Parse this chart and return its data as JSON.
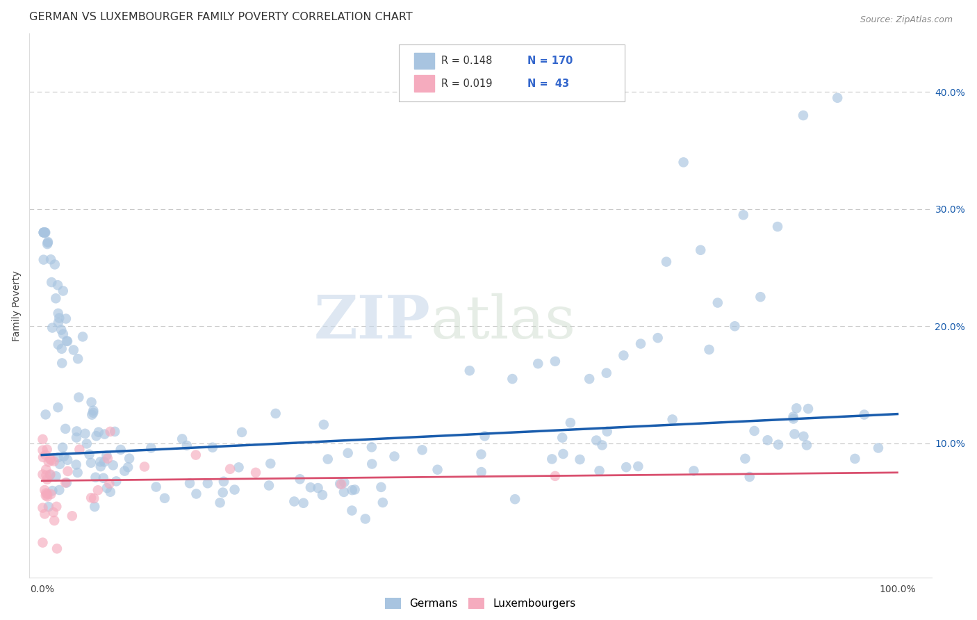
{
  "title": "GERMAN VS LUXEMBOURGER FAMILY POVERTY CORRELATION CHART",
  "source": "Source: ZipAtlas.com",
  "ylabel_label": "Family Poverty",
  "right_yticks": [
    0.1,
    0.2,
    0.3,
    0.4
  ],
  "right_ytick_labels": [
    "10.0%",
    "20.0%",
    "30.0%",
    "40.0%"
  ],
  "blue_color": "#A8C4E0",
  "pink_color": "#F5ABBE",
  "blue_line_color": "#1A5DAD",
  "pink_line_color": "#D94F6E",
  "blue_r": 0.148,
  "blue_n": 170,
  "pink_r": 0.019,
  "pink_n": 43,
  "background_color": "#ffffff",
  "grid_color": "#c8c8c8",
  "title_fontsize": 11.5,
  "source_fontsize": 9,
  "legend_text_color": "#3366CC",
  "label_text_color": "#444444"
}
